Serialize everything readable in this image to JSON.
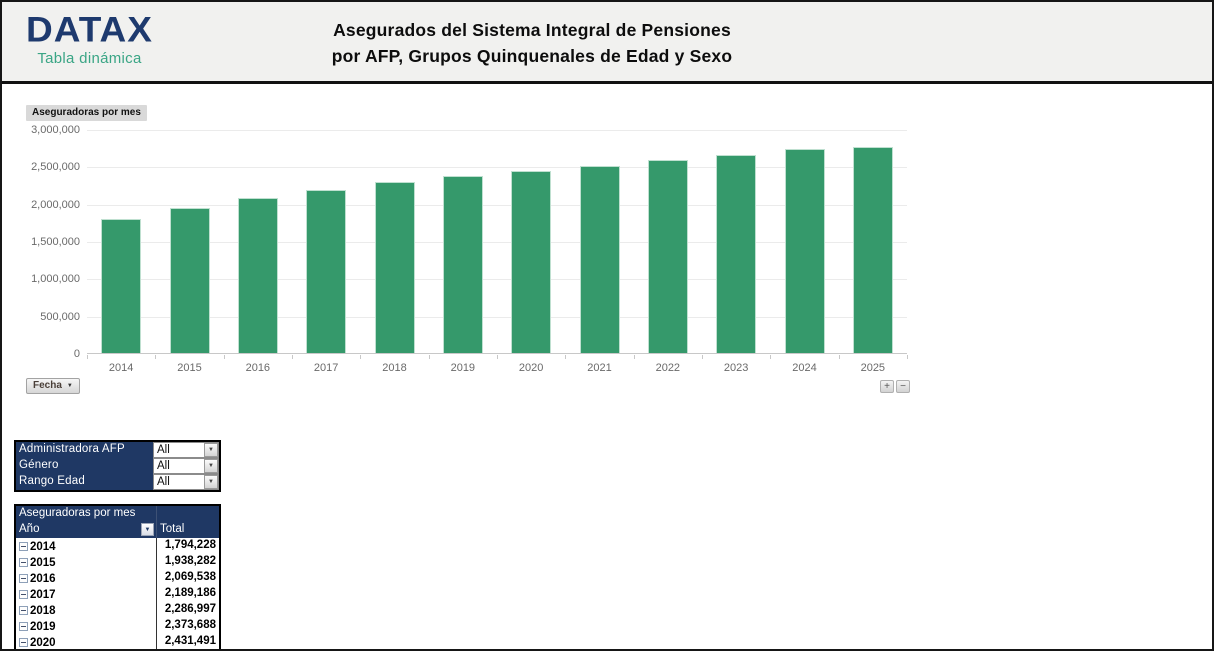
{
  "header": {
    "brand": "DATAX",
    "brand_subtitle": "Tabla dinámica",
    "title_line1": "Asegurados del Sistema Integral de Pensiones",
    "title_line2": "por AFP, Grupos Quinquenales de Edad y Sexo"
  },
  "chart": {
    "series_field_button": "Aseguradoras por mes",
    "axis_field_button": "Fecha",
    "zoom_in_label": "+",
    "zoom_out_label": "−"
  },
  "chart_data": {
    "type": "bar",
    "title": "Aseguradoras por mes",
    "categories": [
      "2014",
      "2015",
      "2016",
      "2017",
      "2018",
      "2019",
      "2020",
      "2021",
      "2022",
      "2023",
      "2024",
      "2025"
    ],
    "values": [
      1794228,
      1938282,
      2069538,
      2189186,
      2286997,
      2373688,
      2431491,
      2500000,
      2580000,
      2655000,
      2730000,
      2755000
    ],
    "xlabel": "",
    "ylabel": "",
    "ylim": [
      0,
      3000000
    ],
    "ytick_labels_top_down": [
      "3,000,000",
      "2,500,000",
      "2,000,000",
      "1,500,000",
      "1,000,000",
      "500,000",
      "0"
    ],
    "grid": true,
    "legend": false,
    "bar_color": "#35996b",
    "note_values_2021_2025_estimated_from_bars": true
  },
  "filters": {
    "rows": [
      {
        "label": "Administradora AFP",
        "value": "All"
      },
      {
        "label": "Género",
        "value": "All"
      },
      {
        "label": "Rango Edad",
        "value": "All"
      }
    ]
  },
  "pivot": {
    "title": "Aseguradoras por mes",
    "col_row_header": "Año",
    "col_value_header": "Total",
    "rows": [
      {
        "year": "2014",
        "total": "1,794,228"
      },
      {
        "year": "2015",
        "total": "1,938,282"
      },
      {
        "year": "2016",
        "total": "2,069,538"
      },
      {
        "year": "2017",
        "total": "2,189,186"
      },
      {
        "year": "2018",
        "total": "2,286,997"
      },
      {
        "year": "2019",
        "total": "2,373,688"
      },
      {
        "year": "2020",
        "total": "2,431,491"
      }
    ]
  },
  "icons": {
    "dropdown_arrow": "▼"
  },
  "colors": {
    "bar_green": "#35996b",
    "navy": "#1f3864",
    "brand_blue": "#1e3a6e",
    "brand_teal": "#3aa585",
    "header_bg": "#f1f1ef"
  }
}
